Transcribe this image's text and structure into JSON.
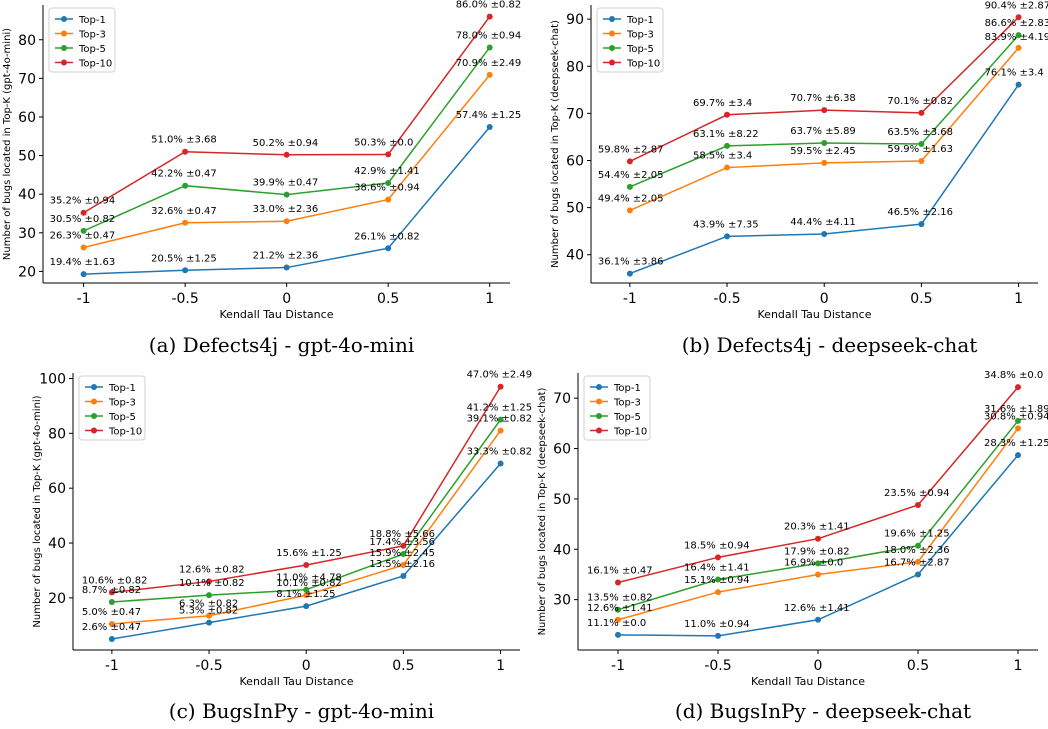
{
  "chart_data": [
    {
      "type": "line",
      "caption": "(a) Defects4j - gpt-4o-mini",
      "xlabel": "Kendall Tau Distance",
      "ylabel": "Number of bugs located in Top-K (gpt-4o-mini)",
      "x": [
        -1,
        -0.5,
        0,
        0.5,
        1
      ],
      "xtick_labels": [
        "-1",
        "-0.5",
        "0",
        "0.5",
        "1"
      ],
      "xlim": [
        -1.2,
        1.1
      ],
      "ylim": [
        17,
        89
      ],
      "yticks": [
        20,
        30,
        40,
        50,
        60,
        70,
        80
      ],
      "legend": "top-left",
      "series": [
        {
          "name": "Top-1",
          "color": "#1f77b4",
          "values": [
            19.3,
            20.3,
            21.0,
            26.0,
            57.4
          ],
          "labels": [
            "19.4% ±1.63",
            "20.5% ±1.25",
            "21.2% ±2.36",
            "26.1% ±0.82",
            "57.4% ±1.25"
          ]
        },
        {
          "name": "Top-3",
          "color": "#ff7f0e",
          "values": [
            26.2,
            32.6,
            33.0,
            38.6,
            70.9
          ],
          "labels": [
            "26.3% ±0.47",
            "32.6% ±0.47",
            "33.0% ±2.36",
            "38.6% ±0.94",
            "70.9% ±2.49"
          ]
        },
        {
          "name": "Top-5",
          "color": "#2ca02c",
          "values": [
            30.5,
            42.2,
            39.9,
            42.9,
            78.0
          ],
          "labels": [
            "30.5% ±0.82",
            "42.2% ±0.47",
            "39.9% ±0.47",
            "42.9% ±1.41",
            "78.0% ±0.94"
          ]
        },
        {
          "name": "Top-10",
          "color": "#d62728",
          "values": [
            35.2,
            51.0,
            50.2,
            50.3,
            86.0
          ],
          "labels": [
            "35.2% ±0.94",
            "51.0% ±3.68",
            "50.2% ±0.94",
            "50.3% ±0.0",
            "86.0% ±0.82"
          ]
        }
      ]
    },
    {
      "type": "line",
      "caption": "(b) Defects4j - deepseek-chat",
      "xlabel": "Kendall Tau Distance",
      "ylabel": "Number of bugs located in Top-K (deepseek-chat)",
      "x": [
        -1,
        -0.5,
        0,
        0.5,
        1
      ],
      "xtick_labels": [
        "-1",
        "-0.5",
        "0",
        "0.5",
        "1"
      ],
      "xlim": [
        -1.2,
        1.1
      ],
      "ylim": [
        34,
        93
      ],
      "yticks": [
        40,
        50,
        60,
        70,
        80,
        90
      ],
      "legend": "top-left",
      "series": [
        {
          "name": "Top-1",
          "color": "#1f77b4",
          "values": [
            36.0,
            43.9,
            44.4,
            46.5,
            76.1
          ],
          "labels": [
            "36.1% ±3.86",
            "43.9% ±7.35",
            "44.4% ±4.11",
            "46.5% ±2.16",
            "76.1% ±3.4"
          ]
        },
        {
          "name": "Top-3",
          "color": "#ff7f0e",
          "values": [
            49.4,
            58.5,
            59.5,
            59.9,
            83.9
          ],
          "labels": [
            "49.4% ±2.05",
            "58.5% ±3.4",
            "59.5% ±2.45",
            "59.9% ±1.63",
            "83.9% ±4.19"
          ]
        },
        {
          "name": "Top-5",
          "color": "#2ca02c",
          "values": [
            54.4,
            63.1,
            63.7,
            63.5,
            86.6
          ],
          "labels": [
            "54.4% ±2.05",
            "63.1% ±8.22",
            "63.7% ±5.89",
            "63.5% ±3.68",
            "86.6% ±2.83"
          ]
        },
        {
          "name": "Top-10",
          "color": "#d62728",
          "values": [
            59.8,
            69.7,
            70.7,
            70.1,
            90.4
          ],
          "labels": [
            "59.8% ±2.87",
            "69.7% ±3.4",
            "70.7% ±6.38",
            "70.1% ±0.82",
            "90.4% ±2.87"
          ]
        }
      ]
    },
    {
      "type": "line",
      "caption": "(c) BugsInPy - gpt-4o-mini",
      "xlabel": "Kendall Tau Distance",
      "ylabel": "Number of bugs located in Top-K (gpt-4o-mini)",
      "x": [
        -1,
        -0.5,
        0,
        0.5,
        1
      ],
      "xtick_labels": [
        "-1",
        "-0.5",
        "0",
        "0.5",
        "1"
      ],
      "xlim": [
        -1.2,
        1.1
      ],
      "ylim": [
        1,
        102
      ],
      "yticks": [
        20,
        40,
        60,
        80,
        100
      ],
      "legend": "top-left",
      "series": [
        {
          "name": "Top-1",
          "color": "#1f77b4",
          "values": [
            5.0,
            11.0,
            17.0,
            28.0,
            69.0
          ],
          "labels": [
            "2.6% ±0.47",
            "5.3% ±0.82",
            "8.1% ±1.25",
            "13.5% ±2.16",
            "33.3% ±0.82"
          ]
        },
        {
          "name": "Top-3",
          "color": "#ff7f0e",
          "values": [
            10.5,
            13.5,
            21.0,
            32.0,
            81.0
          ],
          "labels": [
            "5.0% ±0.47",
            "6.3% ±0.82",
            "10.1% ±0.82",
            "15.9% ±2.45",
            "39.1% ±0.82"
          ]
        },
        {
          "name": "Top-5",
          "color": "#2ca02c",
          "values": [
            18.5,
            21.0,
            23.0,
            36.0,
            85.0
          ],
          "labels": [
            "8.7% ±0.82",
            "10.1% ±0.82",
            "11.0% ±4.78",
            "17.4% ±3.56",
            "41.2% ±1.25"
          ]
        },
        {
          "name": "Top-10",
          "color": "#d62728",
          "values": [
            22.0,
            26.0,
            32.0,
            39.0,
            97.0
          ],
          "labels": [
            "10.6% ±0.82",
            "12.6% ±0.82",
            "15.6% ±1.25",
            "18.8% ±5.66",
            "47.0% ±2.49"
          ]
        }
      ]
    },
    {
      "type": "line",
      "caption": "(d) BugsInPy - deepseek-chat",
      "xlabel": "Kendall Tau Distance",
      "ylabel": "Number of bugs located in Top-K (deepseek-chat)",
      "x": [
        -1,
        -0.5,
        0,
        0.5,
        1
      ],
      "xtick_labels": [
        "-1",
        "-0.5",
        "0",
        "0.5",
        "1"
      ],
      "xlim": [
        -1.2,
        1.1
      ],
      "ylim": [
        20,
        75
      ],
      "yticks": [
        30,
        40,
        50,
        60,
        70
      ],
      "legend": "top-left",
      "series": [
        {
          "name": "Top-1",
          "color": "#1f77b4",
          "values": [
            23.0,
            22.8,
            26.0,
            35.0,
            58.7
          ],
          "labels": [
            "11.1% ±0.0",
            "11.0% ±0.94",
            "12.6% ±1.41",
            "16.7% ±2.87",
            "28.3% ±1.25"
          ]
        },
        {
          "name": "Top-3",
          "color": "#ff7f0e",
          "values": [
            26.0,
            31.5,
            35.0,
            37.5,
            64.0
          ],
          "labels": [
            "12.6% ±1.41",
            "15.1% ±0.94",
            "16.9% ±0.0",
            "18.0% ±2.36",
            "30.8% ±0.94"
          ]
        },
        {
          "name": "Top-5",
          "color": "#2ca02c",
          "values": [
            28.0,
            34.0,
            37.2,
            40.7,
            65.5
          ],
          "labels": [
            "13.5% ±0.82",
            "16.4% ±1.41",
            "17.9% ±0.82",
            "19.6% ±1.25",
            "31.6% ±1.89"
          ]
        },
        {
          "name": "Top-10",
          "color": "#d62728",
          "values": [
            33.4,
            38.4,
            42.1,
            48.8,
            72.2
          ],
          "labels": [
            "16.1% ±0.47",
            "18.5% ±0.94",
            "20.3% ±1.41",
            "23.5% ±0.94",
            "34.8% ±0.0"
          ]
        }
      ]
    }
  ]
}
